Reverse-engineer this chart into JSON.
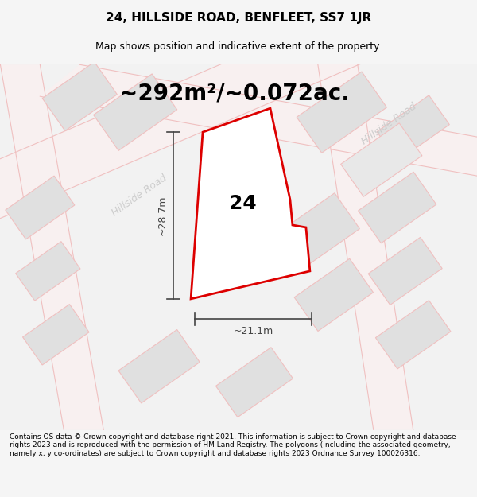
{
  "title": "24, HILLSIDE ROAD, BENFLEET, SS7 1JR",
  "subtitle": "Map shows position and indicative extent of the property.",
  "area_text": "~292m²/~0.072ac.",
  "label_24": "24",
  "dim_height": "~28.7m",
  "dim_width": "~21.1m",
  "road_label_1": "Hillside Road",
  "road_label_2": "Hillside Road",
  "footer": "Contains OS data © Crown copyright and database right 2021. This information is subject to Crown copyright and database rights 2023 and is reproduced with the permission of HM Land Registry. The polygons (including the associated geometry, namely x, y co-ordinates) are subject to Crown copyright and database rights 2023 Ordnance Survey 100026316.",
  "bg_color": "#f5f5f5",
  "map_bg": "#ffffff",
  "road_fill": "#f0f0f0",
  "road_stroke": "#e8a0a0",
  "plot_fill": "#ffffff",
  "plot_stroke": "#e00000",
  "building_fill": "#dddddd",
  "dim_color": "#444444",
  "road_text_color": "#bbbbbb",
  "title_fontsize": 11,
  "subtitle_fontsize": 9,
  "area_fontsize": 20,
  "label_fontsize": 18,
  "footer_fontsize": 6.5
}
